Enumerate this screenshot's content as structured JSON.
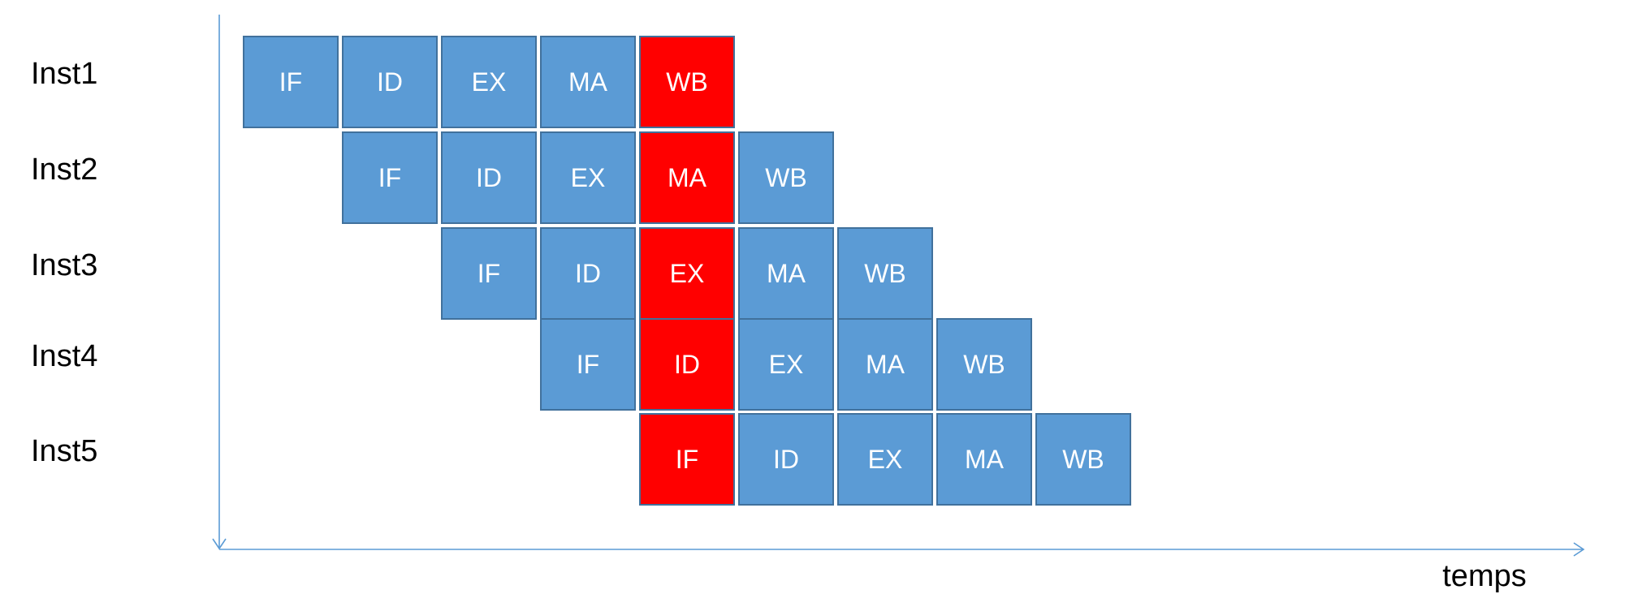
{
  "instructions": [
    {
      "label": "Inst1",
      "start": 0,
      "stages": [
        "IF",
        "ID",
        "EX",
        "MA",
        "WB"
      ]
    },
    {
      "label": "Inst2",
      "start": 1,
      "stages": [
        "IF",
        "ID",
        "EX",
        "MA",
        "WB"
      ]
    },
    {
      "label": "Inst3",
      "start": 2,
      "stages": [
        "IF",
        "ID",
        "EX",
        "MA",
        "WB"
      ]
    },
    {
      "label": "Inst4",
      "start": 3,
      "stages": [
        "IF",
        "ID",
        "EX",
        "MA",
        "WB"
      ]
    },
    {
      "label": "Inst5",
      "start": 4,
      "stages": [
        "IF",
        "ID",
        "EX",
        "MA",
        "WB"
      ]
    }
  ],
  "highlight_cycle": 4,
  "axis": {
    "x_label": "temps"
  },
  "colors": {
    "stage_fill": "#5b9bd5",
    "stage_border": "#41719c",
    "highlight_fill": "#ff0000",
    "axis": "#5b9bd5"
  }
}
